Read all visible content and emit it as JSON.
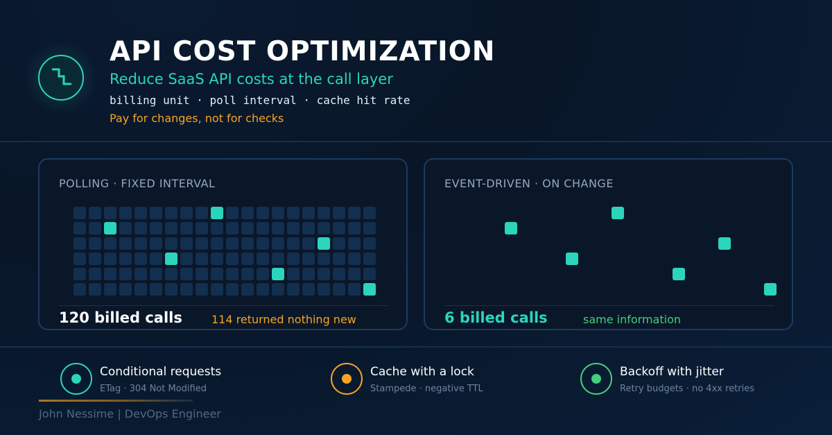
{
  "header": {
    "logo_icon": "step-down-icon",
    "title": "API COST OPTIMIZATION",
    "subtitle": "Reduce SaaS API costs at the call layer",
    "metrics": "billing unit · poll interval · cache hit rate",
    "tagline": "Pay for changes, not for checks"
  },
  "colors": {
    "accent_teal": "#2bd5bb",
    "accent_orange": "#f5a524",
    "accent_green": "#44cf7b",
    "idle_cell": "#132f4f"
  },
  "panels": {
    "polling": {
      "label": "POLLING · FIXED INTERVAL",
      "calls": "120 billed calls",
      "note": "114 returned nothing new",
      "rows": 6,
      "cols": 20,
      "active_cells": [
        [
          0,
          9
        ],
        [
          1,
          2
        ],
        [
          2,
          16
        ],
        [
          3,
          6
        ],
        [
          4,
          13
        ],
        [
          5,
          19
        ]
      ]
    },
    "event_driven": {
      "label": "EVENT-DRIVEN · ON CHANGE",
      "calls": "6 billed calls",
      "note": "same information",
      "active_cells": [
        [
          0,
          10
        ],
        [
          1,
          3
        ],
        [
          2,
          17
        ],
        [
          3,
          7
        ],
        [
          4,
          14
        ],
        [
          5,
          20
        ]
      ]
    }
  },
  "features": [
    {
      "icon": "target-icon",
      "color": "#2bd5bb",
      "title": "Conditional requests",
      "subtitle": "ETag · 304 Not Modified"
    },
    {
      "icon": "lock-dot-icon",
      "color": "#f5a524",
      "title": "Cache with a lock",
      "subtitle": "Stampede · negative TTL"
    },
    {
      "icon": "retry-dot-icon",
      "color": "#44cf7b",
      "title": "Backoff with jitter",
      "subtitle": "Retry budgets · no 4xx retries"
    }
  ],
  "footer": {
    "author": "John Nessime | DevOps Engineer"
  }
}
